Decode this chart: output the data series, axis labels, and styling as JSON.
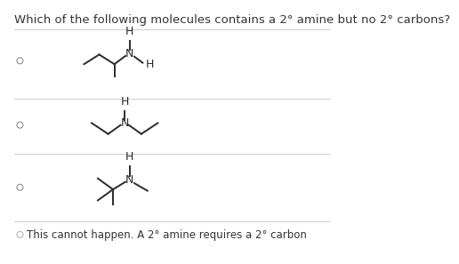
{
  "question": "Which of the following molecules contains a 2° amine but no 2° carbons?",
  "last_option": "This cannot happen. A 2° amine requires a 2° carbon",
  "bg_color": "#ffffff",
  "text_color": "#333333",
  "line_color": "#2a2a2a",
  "divider_color": "#cccccc",
  "radio_color": "#999999",
  "font_size_question": 9.5,
  "font_size_option": 8.5,
  "font_size_atom": 9.0
}
